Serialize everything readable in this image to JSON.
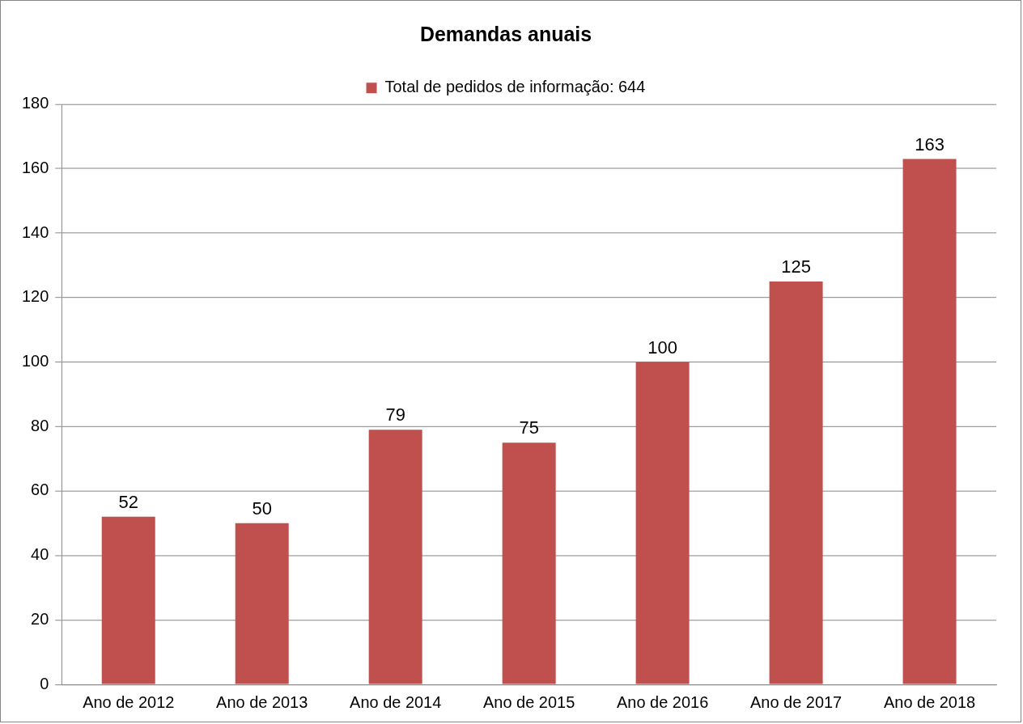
{
  "chart_data": {
    "type": "bar",
    "title": "Demandas anuais",
    "categories": [
      "Ano de 2012",
      "Ano de 2013",
      "Ano de 2014",
      "Ano de 2015",
      "Ano de 2016",
      "Ano de 2017",
      "Ano de 2018"
    ],
    "series": [
      {
        "name": "Total de pedidos de informação: 644",
        "color": "#c0504d",
        "values": [
          52,
          50,
          79,
          75,
          100,
          125,
          163
        ]
      }
    ],
    "ylim": [
      0,
      180
    ],
    "yticks": [
      0,
      20,
      40,
      60,
      80,
      100,
      120,
      140,
      160,
      180
    ],
    "grid": "y",
    "legend": "top",
    "data_labels": true
  }
}
